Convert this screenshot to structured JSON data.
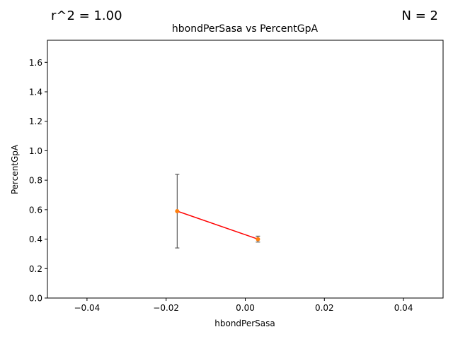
{
  "header": {
    "r_squared_label": "r^2 = 1.00",
    "n_label": "N = 2"
  },
  "chart_data": {
    "type": "line",
    "title": "hbondPerSasa vs PercentGpA",
    "xlabel": "hbondPerSasa",
    "ylabel": "PercentGpA",
    "xlim": [
      -0.05,
      0.05
    ],
    "ylim": [
      0.0,
      1.75
    ],
    "xticks": [
      -0.04,
      -0.02,
      0.0,
      0.02,
      0.04
    ],
    "xtick_labels": [
      "−0.04",
      "−0.02",
      "0.00",
      "0.02",
      "0.04"
    ],
    "yticks": [
      0.0,
      0.2,
      0.4,
      0.6,
      0.8,
      1.0,
      1.2,
      1.4,
      1.6
    ],
    "ytick_labels": [
      "0.0",
      "0.2",
      "0.4",
      "0.6",
      "0.8",
      "1.0",
      "1.2",
      "1.4",
      "1.6"
    ],
    "grid": false,
    "points": [
      {
        "x": -0.0172,
        "y": 0.59,
        "yerr": 0.25
      },
      {
        "x": 0.0032,
        "y": 0.4,
        "yerr": 0.02
      }
    ],
    "fit_line": {
      "x": [
        -0.0172,
        0.0032
      ],
      "y": [
        0.59,
        0.4
      ]
    },
    "colors": {
      "points": "#ff7f0e",
      "fit_line": "#ff0000",
      "error_bars": "#5a5a5a"
    }
  }
}
